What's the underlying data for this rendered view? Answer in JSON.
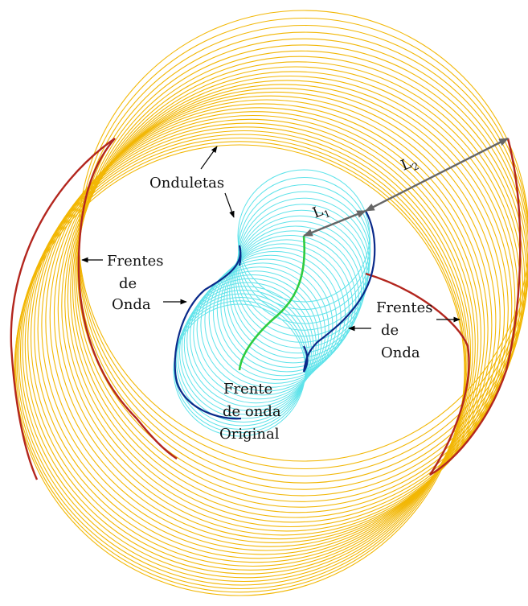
{
  "labels": {
    "onduletas": "Onduletas",
    "frentes_left": [
      "Frentes",
      "de",
      "Onda"
    ],
    "frentes_right": [
      "Frentes",
      "de",
      "Onda"
    ],
    "original": [
      "Frente",
      "de onda",
      "Original"
    ],
    "l1": "L",
    "l1_sub": "1",
    "l2": "L",
    "l2_sub": "2"
  },
  "colors": {
    "outer_wavelets": "#f2b705",
    "outer_front": "#b3261e",
    "inner_wavelets": "#5fe3ea",
    "inner_front": "#0a2a8a",
    "original_front": "#2ecc40",
    "dimension_arrow": "#666666"
  }
}
